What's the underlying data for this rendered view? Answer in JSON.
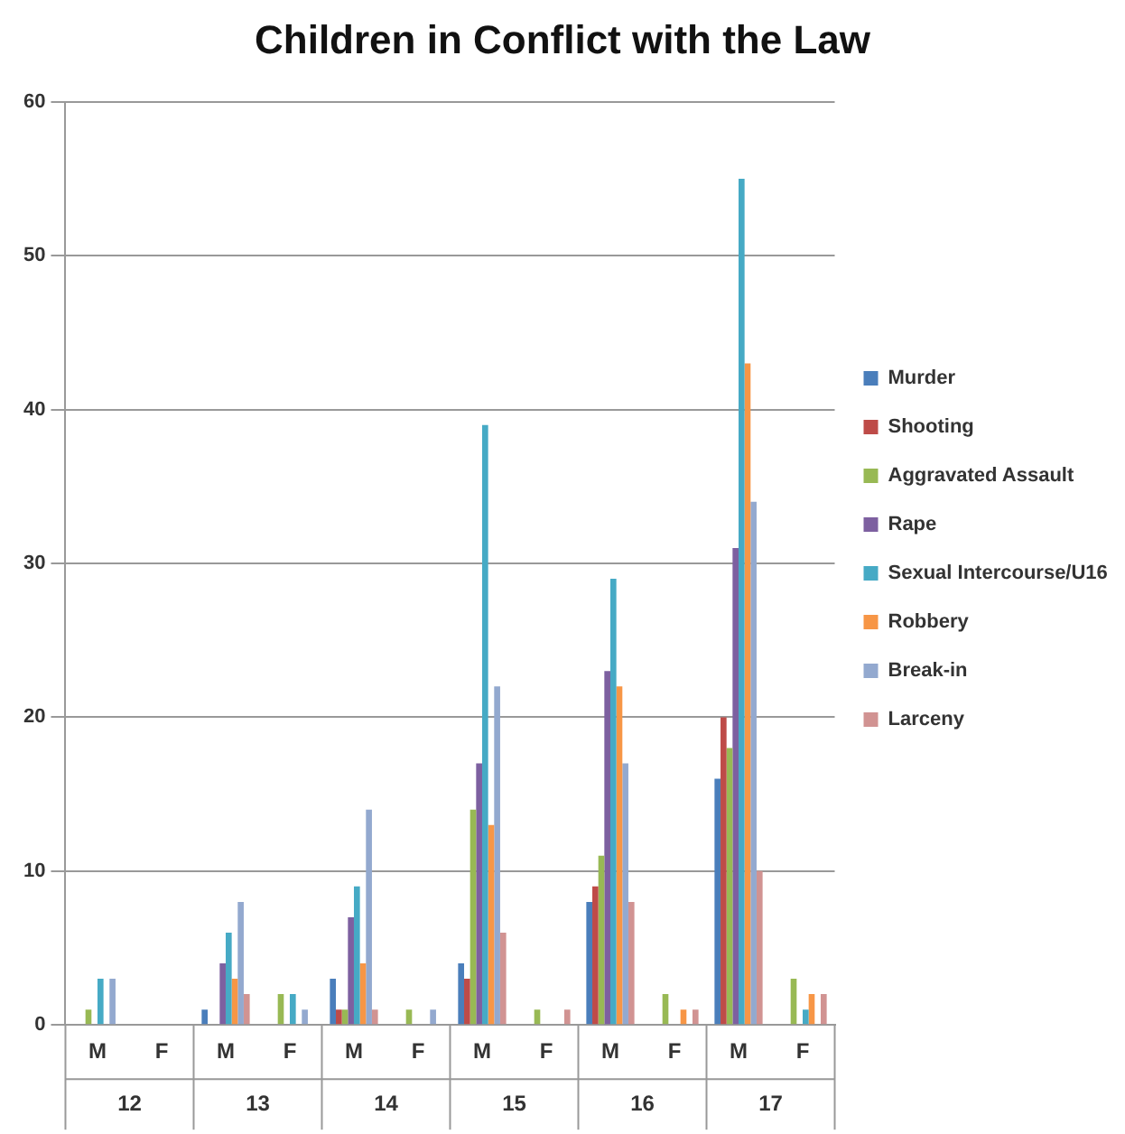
{
  "chart_data": {
    "type": "bar",
    "title": "Children in Conflict with the Law",
    "categories": [
      "M",
      "F",
      "M",
      "F",
      "M",
      "F",
      "M",
      "F",
      "M",
      "F",
      "M",
      "F"
    ],
    "annotations": [
      "12",
      "13",
      "14",
      "15",
      "16",
      "17"
    ],
    "series": [
      {
        "name": "Murder",
        "color": "#4a7ebb",
        "values": [
          0,
          0,
          1,
          0,
          3,
          0,
          4,
          0,
          8,
          0,
          16,
          0
        ]
      },
      {
        "name": "Shooting",
        "color": "#be4b48",
        "values": [
          0,
          0,
          0,
          0,
          1,
          0,
          3,
          0,
          9,
          0,
          20,
          0
        ]
      },
      {
        "name": "Aggravated Assault",
        "color": "#98b954",
        "values": [
          1,
          0,
          0,
          2,
          1,
          1,
          14,
          1,
          11,
          2,
          18,
          3
        ]
      },
      {
        "name": "Rape",
        "color": "#7d60a0",
        "values": [
          0,
          0,
          4,
          0,
          7,
          0,
          17,
          0,
          23,
          0,
          31,
          0
        ]
      },
      {
        "name": "Sexual Intercourse/U16",
        "color": "#46aac5",
        "values": [
          3,
          0,
          6,
          2,
          9,
          0,
          39,
          0,
          29,
          0,
          55,
          1
        ]
      },
      {
        "name": "Robbery",
        "color": "#f79646",
        "values": [
          0,
          0,
          3,
          0,
          4,
          0,
          13,
          0,
          22,
          1,
          43,
          2
        ]
      },
      {
        "name": "Break-in",
        "color": "#93a9cf",
        "values": [
          3,
          0,
          8,
          1,
          14,
          1,
          22,
          0,
          17,
          0,
          34,
          0
        ]
      },
      {
        "name": "Larceny",
        "color": "#d19392",
        "values": [
          0,
          0,
          2,
          0,
          1,
          0,
          6,
          1,
          8,
          1,
          10,
          2
        ]
      }
    ],
    "ylim": [
      0,
      60
    ],
    "yticks": [
      0,
      10,
      20,
      30,
      40,
      50,
      60
    ],
    "grid": "y",
    "legend": "right"
  }
}
